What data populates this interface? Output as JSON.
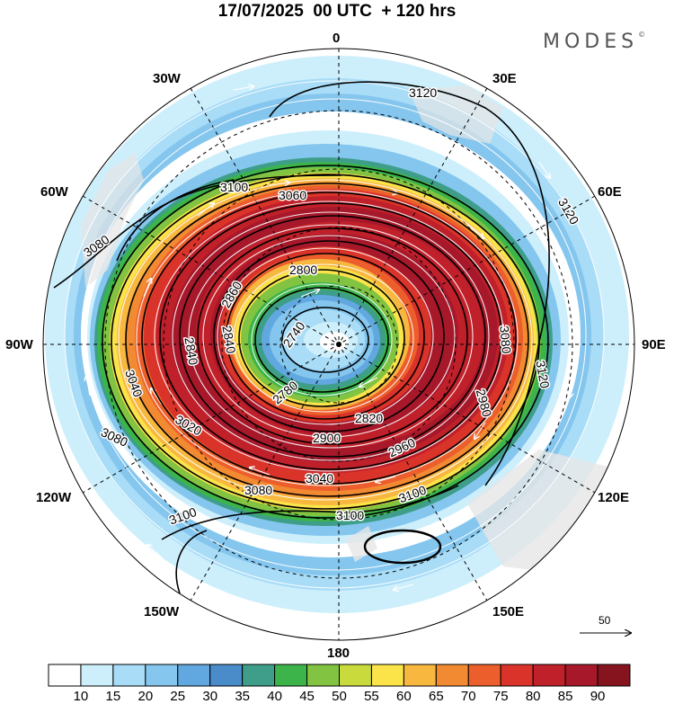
{
  "header": {
    "title": "17/07/2025  00 UTC  + 120 hrs",
    "brand": "MODES",
    "brand_mark": "©"
  },
  "map": {
    "projection": "south-polar-stereographic",
    "longitude_labels": {
      "top": "0",
      "top_right": "30E",
      "upper_right": "60E",
      "right": "90E",
      "lower_right": "120E",
      "bottom_right": "150E",
      "bottom": "180",
      "bottom_left": "150W",
      "lower_left": "120W",
      "left": "90W",
      "upper_left": "60W",
      "top_left": "30W"
    },
    "contour_labels": [
      "3120",
      "3120",
      "3120",
      "3100",
      "3100",
      "3100",
      "3100",
      "3080",
      "3080",
      "3080",
      "3080",
      "3060",
      "3040",
      "3040",
      "3020",
      "2980",
      "2960",
      "2900",
      "2860",
      "2840",
      "2840",
      "2820",
      "2800",
      "2780",
      "2740"
    ],
    "wind_reference": {
      "value": "50"
    },
    "colors": {
      "land": "#e6e6e6",
      "contour": "#000000",
      "wind_vectors": "#ffffff"
    }
  },
  "colorbar": {
    "ticks": [
      "10",
      "15",
      "20",
      "25",
      "30",
      "35",
      "40",
      "45",
      "50",
      "55",
      "60",
      "65",
      "70",
      "75",
      "80",
      "85",
      "90"
    ],
    "colors": [
      "#ffffff",
      "#cdeffc",
      "#a8dcf7",
      "#84c6ee",
      "#62a8e0",
      "#4a8cc9",
      "#3e9e8a",
      "#3cb44a",
      "#82c341",
      "#c9da3c",
      "#fbe34a",
      "#f8b840",
      "#f28a32",
      "#ec5f2c",
      "#d9332a",
      "#c0202a",
      "#a6182a",
      "#86141f"
    ]
  }
}
